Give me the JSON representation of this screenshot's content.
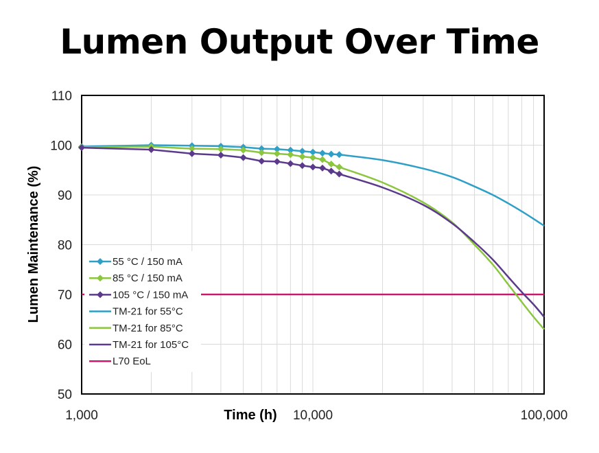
{
  "chart_data": {
    "type": "line",
    "title": "Lumen Output Over Time",
    "xlabel": "Time (h)",
    "ylabel": "Lumen Maintenance (%)",
    "xscale": "log",
    "xlim": [
      1000,
      100000
    ],
    "ylim": [
      50,
      110
    ],
    "xticks": [
      1000,
      10000,
      100000
    ],
    "xtick_labels": [
      "1,000",
      "10,000",
      "100,000"
    ],
    "yticks": [
      50,
      60,
      70,
      80,
      90,
      100,
      110
    ],
    "ytick_labels": [
      "50",
      "60",
      "70",
      "80",
      "90",
      "100",
      "110"
    ],
    "grid": true,
    "legend_position": "lower-left",
    "measured_x": [
      1000,
      2000,
      3000,
      4000,
      5000,
      6000,
      7000,
      8000,
      9000,
      10000,
      11000,
      12000,
      13000
    ],
    "series": [
      {
        "name": "55 °C / 150 mA",
        "color": "#2e9fc7",
        "marker": true,
        "values": [
          99.7,
          100.0,
          99.9,
          99.8,
          99.6,
          99.3,
          99.2,
          99.0,
          98.8,
          98.6,
          98.4,
          98.2,
          98.1
        ]
      },
      {
        "name": "85 °C / 150 mA",
        "color": "#8cc63f",
        "marker": true,
        "values": [
          99.6,
          99.7,
          99.3,
          99.2,
          99.0,
          98.5,
          98.3,
          98.1,
          97.7,
          97.5,
          97.1,
          96.2,
          95.6
        ]
      },
      {
        "name": "105 °C / 150 mA",
        "color": "#5b3a8c",
        "marker": true,
        "values": [
          99.5,
          99.1,
          98.3,
          98.0,
          97.5,
          96.8,
          96.7,
          96.3,
          95.9,
          95.6,
          95.4,
          94.8,
          94.2
        ]
      },
      {
        "name": "TM-21 for 55°C",
        "color": "#2e9fc7",
        "marker": false,
        "x": [
          13000,
          20000,
          30000,
          40000,
          50000,
          60000,
          70000,
          80000,
          90000,
          100000
        ],
        "values": [
          98.1,
          97.0,
          95.3,
          93.6,
          91.7,
          90.0,
          88.3,
          86.7,
          85.2,
          83.8
        ]
      },
      {
        "name": "TM-21 for 85°C",
        "color": "#8cc63f",
        "marker": false,
        "x": [
          13000,
          20000,
          30000,
          40000,
          50000,
          60000,
          70000,
          80000,
          90000,
          100000
        ],
        "values": [
          95.6,
          92.5,
          88.5,
          84.5,
          80.0,
          76.0,
          72.0,
          68.5,
          65.5,
          63.0
        ]
      },
      {
        "name": "TM-21 for 105°C",
        "color": "#5b3a8c",
        "marker": false,
        "x": [
          13000,
          20000,
          30000,
          40000,
          50000,
          60000,
          70000,
          80000,
          90000,
          100000
        ],
        "values": [
          94.2,
          91.5,
          88.0,
          84.3,
          80.5,
          77.0,
          73.5,
          70.5,
          68.0,
          65.5
        ]
      },
      {
        "name": "L70 EoL",
        "color": "#c8186e",
        "marker": false,
        "x": [
          1000,
          100000
        ],
        "values": [
          70,
          70
        ]
      }
    ]
  }
}
